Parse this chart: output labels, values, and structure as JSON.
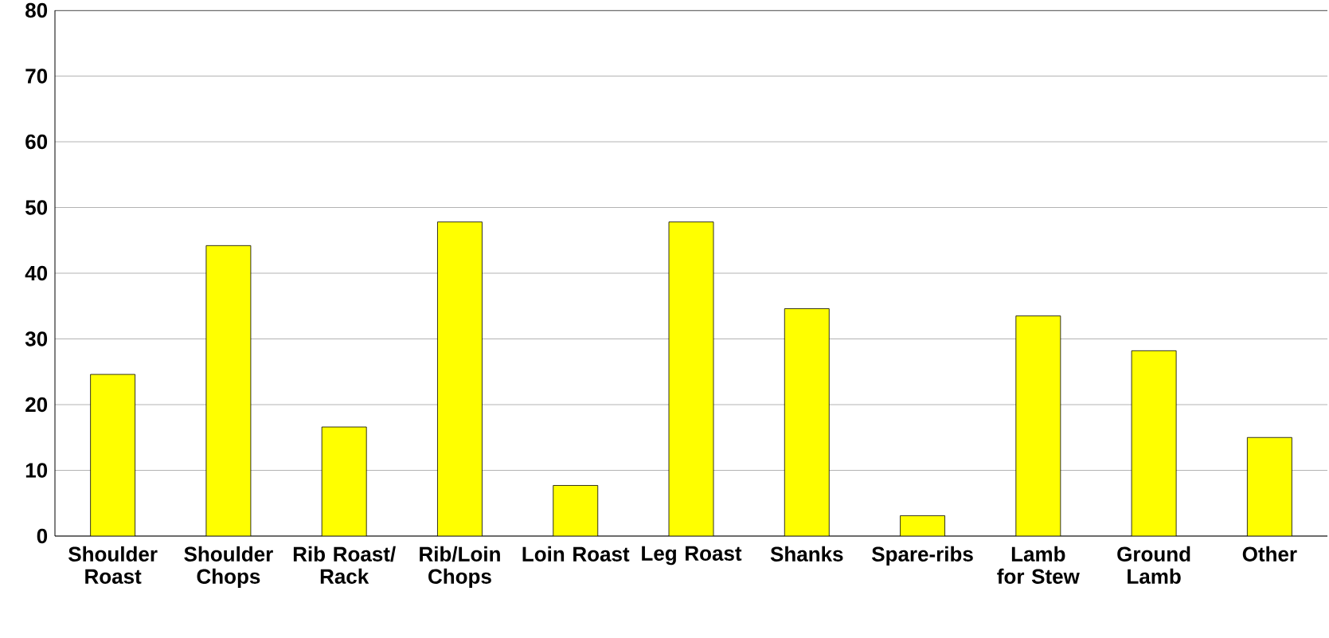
{
  "chart_data": {
    "type": "bar",
    "categories": [
      "Shoulder Roast",
      "Shoulder Chops",
      "Rib Roast/ Rack",
      "Rib/Loin Chops",
      "Loin Roast",
      "Leg Roast",
      "Shanks",
      "Spare-ribs",
      "Lamb for Stew",
      "Ground Lamb",
      "Other"
    ],
    "values": [
      24.6,
      44.2,
      16.6,
      47.8,
      7.7,
      47.8,
      34.6,
      3.1,
      33.5,
      28.2,
      15.0
    ],
    "color": "#ffff00",
    "ylim": [
      0,
      80
    ],
    "yticks": [
      0,
      10,
      20,
      30,
      40,
      50,
      60,
      70,
      80
    ],
    "grid": "y"
  }
}
